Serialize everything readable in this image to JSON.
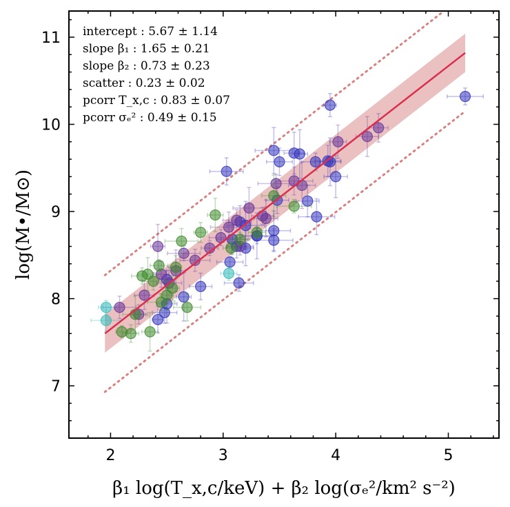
{
  "chart_data": {
    "type": "scatter",
    "xlabel": "β₁ log(T_x,c/keV) + β₂ log(σₑ²/km² s⁻²)",
    "ylabel": "log(M•/M⊙)",
    "xlim": [
      1.63,
      5.45
    ],
    "ylim": [
      6.4,
      11.3
    ],
    "x_ticks": [
      "2",
      "3",
      "4",
      "5"
    ],
    "y_ticks": [
      "7",
      "8",
      "9",
      "10",
      "11"
    ],
    "grid": false,
    "annotations": [
      "intercept : 5.67 ± 1.14",
      "slope β₁ : 1.65 ± 0.21",
      "slope β₂ : 0.73 ± 0.23",
      "scatter : 0.23 ± 0.02",
      "pcorr T_x,c : 0.83 ± 0.07",
      "pcorr σₑ² : 0.49 ± 0.15"
    ],
    "fit": {
      "x": [
        1.95,
        5.15
      ],
      "y": [
        7.6,
        10.82
      ],
      "band_halfwidth": [
        0.22,
        0.22
      ],
      "scatter_offset": 0.67
    },
    "colors": {
      "fit": "#d9304f",
      "band": "#d98c8c",
      "scatter_lines": "#d98080",
      "blue": "#3333bb",
      "purple": "#663399",
      "green": "#3d8a2a",
      "cyan": "#33b8b8"
    },
    "series": [
      {
        "group": "blue",
        "x": [
          5.15,
          3.95,
          3.93,
          3.95,
          4.0,
          3.82,
          3.68,
          3.63,
          3.5,
          3.45,
          3.03,
          3.2,
          3.45,
          3.45,
          3.75,
          3.83,
          3.48,
          3.3,
          3.12,
          3.08,
          3.06,
          3.14,
          2.8,
          2.65,
          2.5,
          2.48,
          2.42,
          2.5,
          3.15,
          3.2,
          3.3
        ],
        "y": [
          10.32,
          10.22,
          9.58,
          9.57,
          9.4,
          9.57,
          9.66,
          9.67,
          9.57,
          9.7,
          9.46,
          8.58,
          8.67,
          8.78,
          9.12,
          8.94,
          9.13,
          8.72,
          8.6,
          8.68,
          8.42,
          8.18,
          8.14,
          8.02,
          7.94,
          7.84,
          7.76,
          8.22,
          8.88,
          8.84,
          8.72
        ]
      },
      {
        "group": "purple",
        "x": [
          4.38,
          4.28,
          4.02,
          3.7,
          3.63,
          3.47,
          3.38,
          3.23,
          3.12,
          3.05,
          2.98,
          2.88,
          2.75,
          2.65,
          2.58,
          2.52,
          2.45,
          2.42,
          2.3,
          2.25,
          2.08,
          3.15,
          3.35
        ],
        "y": [
          9.96,
          9.86,
          9.8,
          9.3,
          9.35,
          9.32,
          8.92,
          9.04,
          8.9,
          8.82,
          8.7,
          8.58,
          8.44,
          8.52,
          8.32,
          8.18,
          8.28,
          8.6,
          8.04,
          7.82,
          7.9,
          8.6,
          8.95
        ]
      },
      {
        "group": "green",
        "x": [
          3.63,
          3.45,
          3.3,
          3.15,
          3.07,
          2.93,
          2.8,
          2.63,
          2.58,
          2.55,
          2.5,
          2.45,
          2.43,
          2.38,
          2.33,
          2.28,
          2.22,
          2.18,
          2.1,
          2.35,
          2.68
        ],
        "y": [
          9.06,
          9.18,
          8.76,
          8.68,
          8.58,
          8.96,
          8.76,
          8.66,
          8.36,
          8.12,
          8.04,
          7.96,
          8.38,
          8.2,
          8.28,
          8.26,
          7.82,
          7.6,
          7.62,
          7.62,
          7.9
        ]
      },
      {
        "group": "cyan",
        "x": [
          1.96,
          1.96,
          3.05
        ],
        "y": [
          7.9,
          7.75,
          8.29
        ]
      }
    ]
  }
}
